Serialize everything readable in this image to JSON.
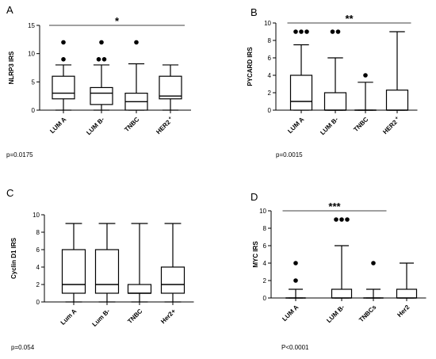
{
  "chart_data": [
    {
      "type": "box",
      "panel": "A",
      "ylabel": "NLRP3 IRS",
      "ylim": [
        0,
        15
      ],
      "yticks": [
        0,
        5,
        10,
        15
      ],
      "categories": [
        "LUM A",
        "LUM B-",
        "TNBC",
        "HER2 +"
      ],
      "cat_suffix_sup": [
        null,
        null,
        null,
        "+"
      ],
      "cat_base": [
        "LUM A",
        "LUM B-",
        "TNBC",
        "HER2"
      ],
      "boxes": [
        {
          "min": 0,
          "q1": 2,
          "median": 3,
          "q3": 6,
          "max": 8,
          "outliers": [
            9,
            12
          ]
        },
        {
          "min": 0,
          "q1": 1,
          "median": 3,
          "q3": 4,
          "max": 8,
          "outliers": [
            9,
            9,
            12
          ]
        },
        {
          "min": 0,
          "q1": 0,
          "median": 1.5,
          "q3": 3,
          "max": 8.2,
          "outliers": [
            12
          ]
        },
        {
          "min": 0,
          "q1": 2,
          "median": 2.5,
          "q3": 6,
          "max": 8,
          "outliers": []
        }
      ],
      "significance": {
        "label": "*",
        "from": 0,
        "to": 3,
        "y": 14.3
      },
      "pvalue": "p=0.0175"
    },
    {
      "type": "box",
      "panel": "B",
      "ylabel": "PYCARD IRS",
      "ylim": [
        0,
        10
      ],
      "yticks": [
        0,
        2,
        4,
        6,
        8,
        10
      ],
      "categories": [
        "LUM A",
        "LUM B-",
        "TNBC",
        "HER2 +"
      ],
      "cat_base": [
        "LUM A",
        "LUM B-",
        "TNBC",
        "HER2"
      ],
      "cat_suffix_sup": [
        null,
        null,
        null,
        "+"
      ],
      "boxes": [
        {
          "min": 0,
          "q1": 0,
          "median": 1,
          "q3": 4,
          "max": 7.5,
          "outliers": [
            9,
            9,
            9
          ]
        },
        {
          "min": 0,
          "q1": 0,
          "median": 0,
          "q3": 2,
          "max": 6,
          "outliers": [
            9,
            9
          ]
        },
        {
          "min": 0,
          "q1": 0,
          "median": 0,
          "q3": 0,
          "max": 3.2,
          "outliers": [
            4
          ]
        },
        {
          "min": 0,
          "q1": 0,
          "median": 0,
          "q3": 2.3,
          "max": 9,
          "outliers": []
        }
      ],
      "significance": {
        "label": "**",
        "from": 0,
        "to": 3,
        "y": 10
      },
      "pvalue": "p=0.0015"
    },
    {
      "type": "box",
      "panel": "C",
      "ylabel": "Cyclin D1 IRS",
      "ylim": [
        0,
        10
      ],
      "yticks": [
        0,
        2,
        4,
        6,
        8,
        10
      ],
      "categories": [
        "Lum A",
        "Lum B-",
        "TNBC",
        "Her2+"
      ],
      "cat_base": [
        "Lum A",
        "Lum B-",
        "TNBC",
        "Her2+"
      ],
      "cat_suffix_sup": [
        null,
        null,
        null,
        null
      ],
      "boxes": [
        {
          "min": 0,
          "q1": 1,
          "median": 2,
          "q3": 6,
          "max": 9,
          "outliers": []
        },
        {
          "min": 0,
          "q1": 1,
          "median": 2,
          "q3": 6,
          "max": 9,
          "outliers": []
        },
        {
          "min": 0,
          "q1": 1,
          "median": 1,
          "q3": 2,
          "max": 9,
          "outliers": []
        },
        {
          "min": 0,
          "q1": 1,
          "median": 2,
          "q3": 4,
          "max": 9,
          "outliers": []
        }
      ],
      "significance": null,
      "pvalue": "p=0.054"
    },
    {
      "type": "box",
      "panel": "D",
      "ylabel": "MYC IRS",
      "ylim": [
        0,
        10
      ],
      "yticks": [
        0,
        2,
        4,
        6,
        8,
        10
      ],
      "categories": [
        "LUM A",
        "LUM B-",
        "TNBCs",
        "Her2"
      ],
      "cat_base": [
        "LUM A",
        "LUM B-",
        "TNBCs",
        "Her2"
      ],
      "cat_suffix_sup": [
        null,
        null,
        null,
        null
      ],
      "boxes": [
        {
          "min": 0,
          "q1": 0,
          "median": 0,
          "q3": 0,
          "max": 1,
          "outliers": [
            2,
            4
          ]
        },
        {
          "min": 0,
          "q1": 0,
          "median": 0,
          "q3": 1,
          "max": 6,
          "outliers": [
            9,
            9,
            9
          ]
        },
        {
          "min": 0,
          "q1": 0,
          "median": 0,
          "q3": 0,
          "max": 1,
          "outliers": [
            4
          ]
        },
        {
          "min": 0,
          "q1": 0,
          "median": 0,
          "q3": 1,
          "max": 4,
          "outliers": []
        }
      ],
      "significance": {
        "label": "***",
        "from": 0,
        "to": 2,
        "y": 10
      },
      "pvalue": "P<0.0001"
    }
  ]
}
